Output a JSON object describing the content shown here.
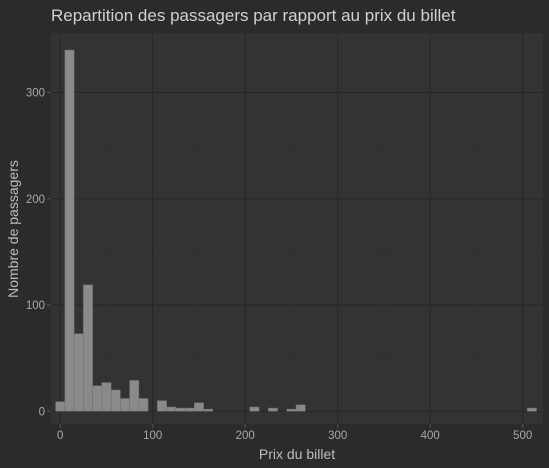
{
  "colors": {
    "background": "#2b2b2b",
    "panel": "#333333",
    "grid_major": "#262626",
    "grid_minor": "#2e2e2e",
    "bar_fill": "#8a8a8a",
    "bar_outline": "#6e6e6e",
    "text": "#d0d0d0"
  },
  "chart_data": {
    "type": "bar",
    "title": "Repartition des passagers par rapport au prix du billet",
    "xlabel": "Prix du billet",
    "ylabel": "Nombre de passagers",
    "xlim": [
      -10,
      522
    ],
    "ylim": [
      -12,
      356
    ],
    "xticks": [
      0,
      100,
      200,
      300,
      400,
      500
    ],
    "yticks": [
      0,
      100,
      200,
      300
    ],
    "bin_width": 10,
    "grid": true,
    "legend": "none",
    "bins": [
      {
        "x": 0,
        "count": 9
      },
      {
        "x": 10,
        "count": 340
      },
      {
        "x": 20,
        "count": 73
      },
      {
        "x": 30,
        "count": 119
      },
      {
        "x": 40,
        "count": 24
      },
      {
        "x": 50,
        "count": 27
      },
      {
        "x": 60,
        "count": 20
      },
      {
        "x": 70,
        "count": 12
      },
      {
        "x": 80,
        "count": 29
      },
      {
        "x": 90,
        "count": 12
      },
      {
        "x": 100,
        "count": 0
      },
      {
        "x": 110,
        "count": 10
      },
      {
        "x": 120,
        "count": 4
      },
      {
        "x": 130,
        "count": 3
      },
      {
        "x": 140,
        "count": 3
      },
      {
        "x": 150,
        "count": 8
      },
      {
        "x": 160,
        "count": 2
      },
      {
        "x": 170,
        "count": 0
      },
      {
        "x": 180,
        "count": 0
      },
      {
        "x": 190,
        "count": 0
      },
      {
        "x": 200,
        "count": 0
      },
      {
        "x": 210,
        "count": 4
      },
      {
        "x": 220,
        "count": 0
      },
      {
        "x": 230,
        "count": 3
      },
      {
        "x": 240,
        "count": 0
      },
      {
        "x": 250,
        "count": 2
      },
      {
        "x": 260,
        "count": 6
      },
      {
        "x": 510,
        "count": 3
      }
    ]
  }
}
